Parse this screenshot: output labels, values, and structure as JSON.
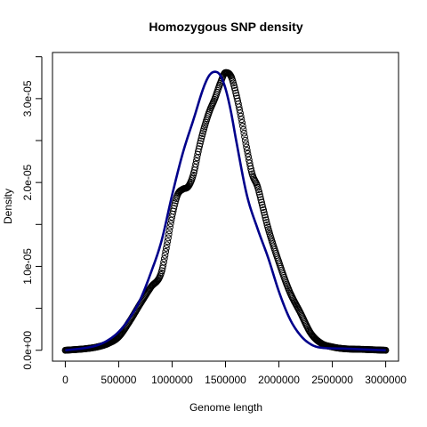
{
  "chart_data": {
    "type": "line",
    "title": "Homozygous SNP density",
    "xlabel": "Genome length",
    "ylabel": "Density",
    "xlim": [
      -120000,
      3120000
    ],
    "ylim": [
      -1.3e-06,
      3.55e-05
    ],
    "x_ticks": [
      0,
      500000,
      1000000,
      1500000,
      2000000,
      2500000,
      3000000
    ],
    "x_tick_labels": [
      "0",
      "500000",
      "1000000",
      "1500000",
      "2000000",
      "2500000",
      "3000000"
    ],
    "y_ticks": [
      0,
      1e-05,
      2e-05,
      3e-05
    ],
    "y_tick_labels": [
      "0.0e+00",
      "1.0e-05",
      "2.0e-05",
      "3.0e-05"
    ],
    "y_minor_ticks": [
      5e-06,
      1.5e-05,
      2.5e-05,
      3.5e-05
    ],
    "grid": false,
    "legend": "none",
    "series": [
      {
        "style": "circles",
        "color": "#000000",
        "x": [
          0,
          200000,
          300000,
          400000,
          500000,
          600000,
          700000,
          800000,
          900000,
          950000,
          1000000,
          1050000,
          1100000,
          1150000,
          1200000,
          1250000,
          1300000,
          1350000,
          1400000,
          1450000,
          1500000,
          1550000,
          1600000,
          1650000,
          1700000,
          1750000,
          1800000,
          1850000,
          1900000,
          2000000,
          2100000,
          2200000,
          2300000,
          2400000,
          2500000,
          2600000,
          2800000,
          3000000
        ],
        "y": [
          0,
          2e-07,
          4e-07,
          8e-07,
          1.6e-06,
          3.4e-06,
          5.5e-06,
          7.5e-06,
          9.3e-06,
          1.25e-05,
          1.6e-05,
          1.85e-05,
          1.92e-05,
          1.95e-05,
          2.1e-05,
          2.4e-05,
          2.65e-05,
          2.85e-05,
          3e-05,
          3.18e-05,
          3.31e-05,
          3.27e-05,
          3.05e-05,
          2.75e-05,
          2.4e-05,
          2.1e-05,
          1.95e-05,
          1.7e-05,
          1.45e-05,
          1.05e-05,
          7e-06,
          4.5e-06,
          2e-06,
          8e-07,
          4e-07,
          2e-07,
          1e-07,
          0
        ]
      },
      {
        "style": "line",
        "color": "#00008B",
        "x": [
          0,
          200000,
          300000,
          400000,
          500000,
          600000,
          700000,
          800000,
          900000,
          1000000,
          1100000,
          1200000,
          1300000,
          1350000,
          1400000,
          1450000,
          1500000,
          1550000,
          1600000,
          1700000,
          1800000,
          1900000,
          2000000,
          2100000,
          2200000,
          2300000,
          2400000,
          2600000,
          2800000,
          3000000
        ],
        "y": [
          0,
          3e-07,
          6e-07,
          1.2e-06,
          2.2e-06,
          3.8e-06,
          6e-06,
          9.2e-06,
          1.3e-05,
          1.85e-05,
          2.35e-05,
          2.75e-05,
          3.15e-05,
          3.28e-05,
          3.32e-05,
          3.28e-05,
          3.12e-05,
          2.85e-05,
          2.5e-05,
          1.85e-05,
          1.45e-05,
          1.1e-05,
          7e-06,
          3.8e-06,
          1.8e-06,
          7e-07,
          3e-07,
          2e-07,
          1e-07,
          0
        ]
      }
    ]
  }
}
